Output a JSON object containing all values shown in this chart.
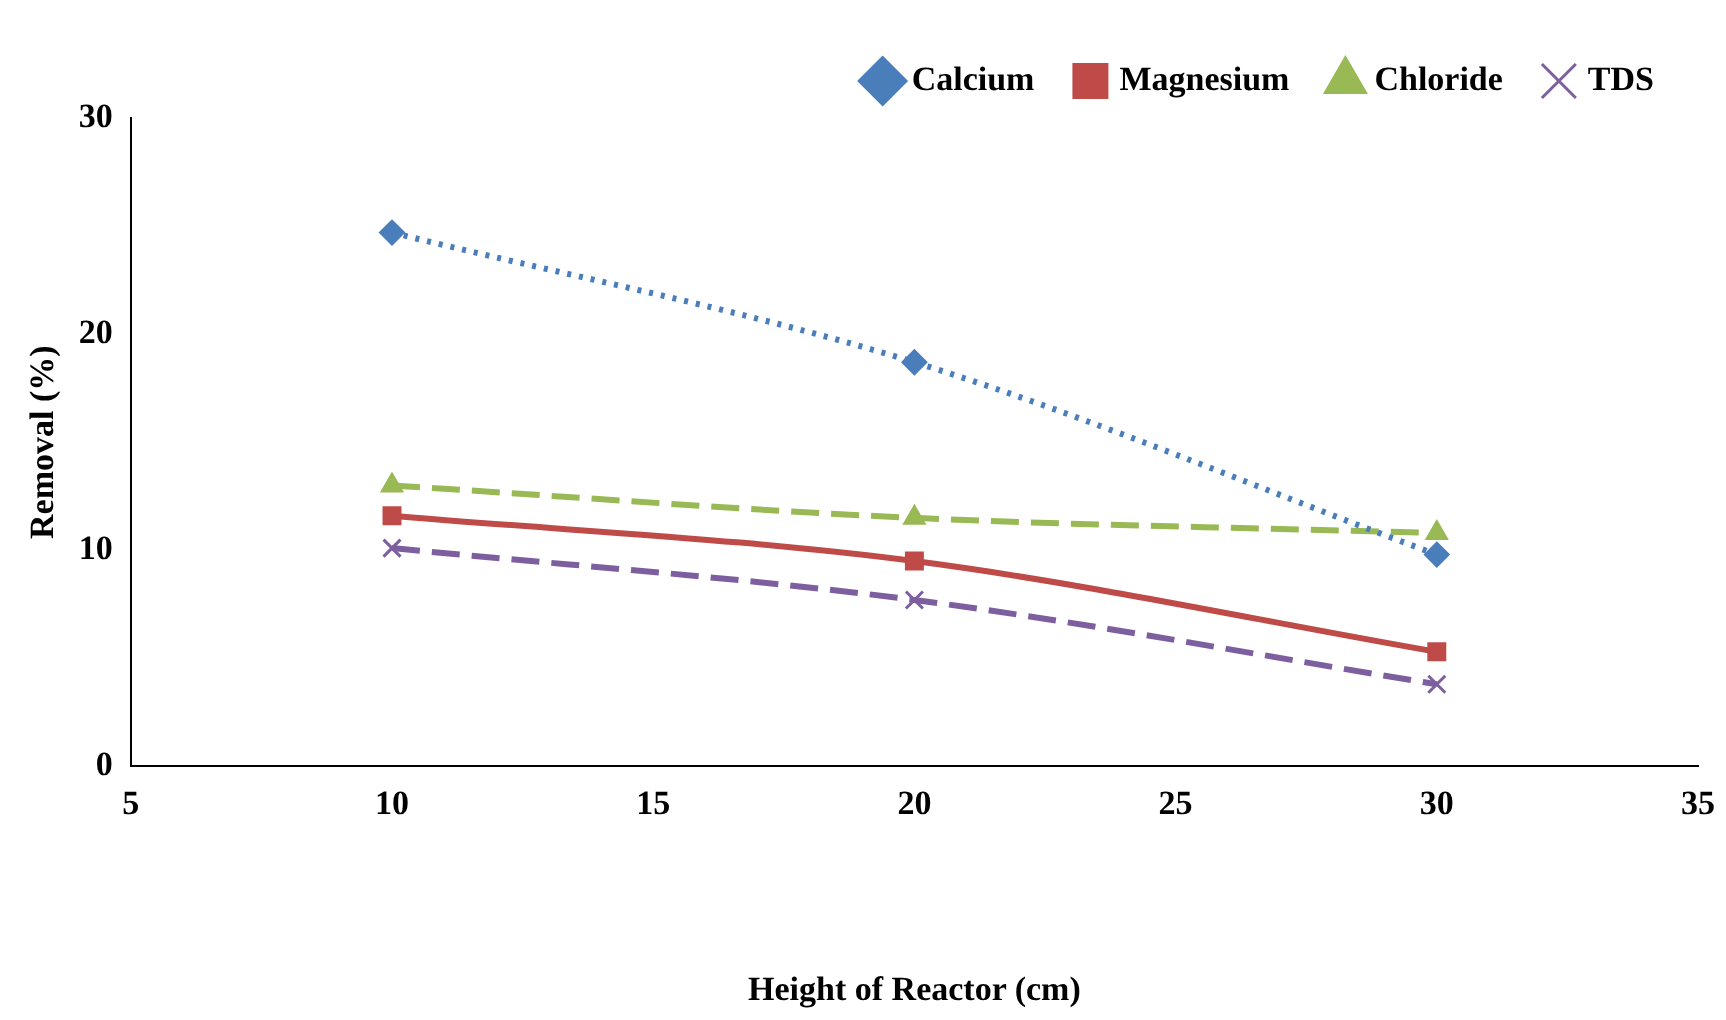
{
  "chart_data": {
    "type": "line",
    "xlabel": "Height of Reactor (cm)",
    "ylabel": "Removal (%)",
    "x": [
      10,
      20,
      30
    ],
    "series": [
      {
        "name": "Calcium",
        "color": "#4a7ebb",
        "values": [
          24.7,
          18.7,
          9.8
        ],
        "marker": "diamond",
        "line_style": "dotted"
      },
      {
        "name": "Magnesium",
        "color": "#be4b48",
        "values": [
          11.6,
          9.5,
          5.3
        ],
        "marker": "square",
        "line_style": "solid"
      },
      {
        "name": "Chloride",
        "color": "#98b954",
        "values": [
          13.0,
          11.5,
          10.8
        ],
        "marker": "triangle",
        "line_style": "dashed"
      },
      {
        "name": "TDS",
        "color": "#7d5fa0",
        "values": [
          10.1,
          7.7,
          3.8
        ],
        "marker": "cross",
        "line_style": "dashed"
      }
    ],
    "xlim": [
      5,
      35
    ],
    "xticks": [
      5,
      10,
      15,
      20,
      25,
      30,
      35
    ],
    "ylim": [
      0,
      30
    ],
    "yticks": [
      0,
      10,
      20,
      30
    ],
    "grid": false,
    "legend": "top right"
  }
}
